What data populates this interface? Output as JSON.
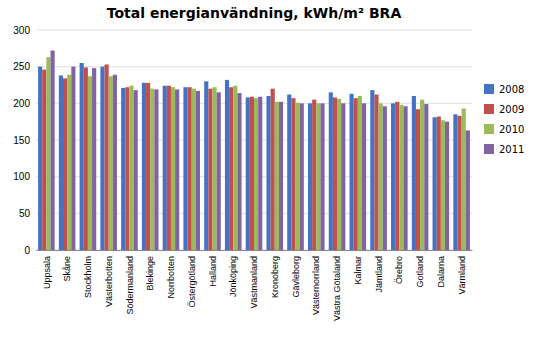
{
  "chart_data": {
    "type": "bar",
    "title": "Total energianvändning, kWh/m² BRA",
    "categories": [
      "Uppsala",
      "Skåne",
      "Stockholm",
      "Västerbotten",
      "Södermanland",
      "Blekinge",
      "Norrbotten",
      "Östergötland",
      "Halland",
      "Jönköping",
      "Västmanland",
      "Kronoberg",
      "Gävleborg",
      "Västernorrland",
      "Västra Götaland",
      "Kalmar",
      "Jämtland",
      "Örebro",
      "Gotland",
      "Dalarna",
      "Värmland"
    ],
    "series": [
      {
        "name": "2008",
        "color": "#4472c4",
        "values": [
          250,
          238,
          255,
          250,
          221,
          228,
          224,
          222,
          230,
          232,
          208,
          210,
          212,
          200,
          215,
          213,
          218,
          200,
          210,
          181,
          185
        ]
      },
      {
        "name": "2009",
        "color": "#c0504d",
        "values": [
          246,
          234,
          249,
          253,
          222,
          228,
          224,
          222,
          220,
          222,
          209,
          220,
          207,
          205,
          208,
          207,
          212,
          202,
          192,
          182,
          183
        ]
      },
      {
        "name": "2010",
        "color": "#9bbb59",
        "values": [
          263,
          239,
          237,
          237,
          224,
          220,
          222,
          220,
          222,
          224,
          207,
          202,
          201,
          200,
          206,
          210,
          200,
          198,
          205,
          177,
          193
        ]
      },
      {
        "name": "2011",
        "color": "#8064a2",
        "values": [
          272,
          250,
          248,
          239,
          218,
          219,
          219,
          217,
          215,
          214,
          209,
          202,
          200,
          200,
          200,
          200,
          196,
          196,
          199,
          175,
          163
        ]
      }
    ],
    "ylim": [
      0,
      300
    ],
    "yticks": [
      0,
      50,
      100,
      150,
      200,
      250,
      300
    ],
    "grid": true,
    "legend": "right"
  }
}
